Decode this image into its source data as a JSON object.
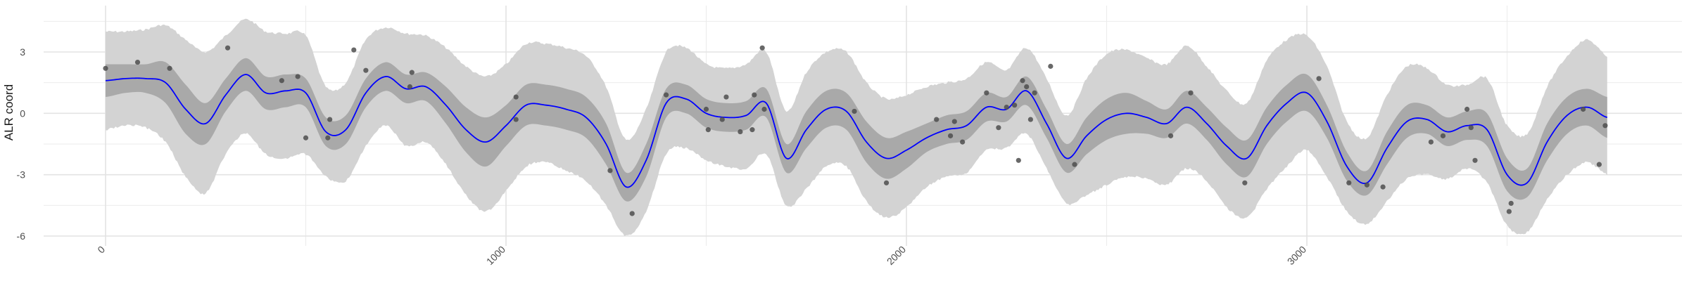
{
  "chart_data": {
    "type": "line",
    "title": "",
    "xlabel": "",
    "ylabel": "ALR coord",
    "xlim": [
      -100,
      3850
    ],
    "ylim": [
      -6.5,
      5.2
    ],
    "x_ticks": [
      0,
      1000,
      2000,
      3000
    ],
    "x_tick_labels": [
      "0",
      "1000",
      "2000",
      "3000"
    ],
    "y_ticks": [
      -6,
      -3,
      0,
      3
    ],
    "y_tick_labels": [
      "-6",
      "-3",
      "0",
      "3"
    ],
    "grid": true,
    "legend": "none",
    "colors": {
      "mean_line": "#0000ff",
      "inner_band": "#a9a9a9",
      "outer_band": "#d3d3d3",
      "points": "#4d4d4d",
      "grid": "#ebebeb"
    },
    "series": [
      {
        "kind": "mean",
        "x": [
          0,
          50,
          100,
          150,
          200,
          250,
          300,
          350,
          400,
          450,
          500,
          550,
          600,
          650,
          700,
          750,
          800,
          850,
          900,
          950,
          1000,
          1050,
          1100,
          1150,
          1200,
          1250,
          1300,
          1350,
          1400,
          1450,
          1500,
          1550,
          1600,
          1650,
          1700,
          1750,
          1800,
          1850,
          1900,
          1950,
          2000,
          2050,
          2100,
          2150,
          2200,
          2250,
          2300,
          2350,
          2400,
          2450,
          2500,
          2550,
          2600,
          2650,
          2700,
          2750,
          2800,
          2850,
          2900,
          2950,
          3000,
          3050,
          3100,
          3150,
          3200,
          3250,
          3300,
          3350,
          3400,
          3450,
          3500,
          3550,
          3600,
          3650,
          3700,
          3750
        ],
        "y": [
          1.6,
          1.7,
          1.7,
          1.5,
          0.2,
          -0.5,
          0.9,
          1.9,
          1.0,
          1.1,
          1.0,
          -0.9,
          -0.8,
          1.0,
          1.8,
          1.2,
          1.3,
          0.4,
          -0.8,
          -1.4,
          -0.6,
          0.4,
          0.4,
          0.2,
          -0.2,
          -1.5,
          -3.6,
          -2.3,
          0.5,
          0.7,
          0.0,
          -0.2,
          -0.1,
          0.5,
          -2.2,
          -0.8,
          0.2,
          0.1,
          -1.4,
          -2.2,
          -1.8,
          -1.2,
          -0.8,
          -0.6,
          0.3,
          0.2,
          1.1,
          -0.5,
          -2.2,
          -1.1,
          -0.3,
          0.0,
          -0.2,
          -0.5,
          0.3,
          -0.5,
          -1.6,
          -2.2,
          -0.6,
          0.5,
          1.0,
          -0.4,
          -2.6,
          -3.4,
          -1.7,
          -0.4,
          -0.3,
          -0.9,
          -0.6,
          -0.8,
          -3.0,
          -3.4,
          -1.4,
          -0.1,
          0.3,
          -0.2
        ]
      },
      {
        "kind": "inner_band",
        "x": [
          0,
          50,
          100,
          150,
          200,
          250,
          300,
          350,
          400,
          450,
          500,
          550,
          600,
          650,
          700,
          750,
          800,
          850,
          900,
          950,
          1000,
          1050,
          1100,
          1150,
          1200,
          1250,
          1300,
          1350,
          1400,
          1450,
          1500,
          1550,
          1600,
          1650,
          1700,
          1750,
          1800,
          1850,
          1900,
          1950,
          2000,
          2050,
          2100,
          2150,
          2200,
          2250,
          2300,
          2350,
          2400,
          2450,
          2500,
          2550,
          2600,
          2650,
          2700,
          2750,
          2800,
          2850,
          2900,
          2950,
          3000,
          3050,
          3100,
          3150,
          3200,
          3250,
          3300,
          3350,
          3400,
          3450,
          3500,
          3550,
          3600,
          3650,
          3700,
          3750
        ],
        "lower": [
          0.8,
          1.0,
          1.0,
          0.5,
          -1.0,
          -1.5,
          0.1,
          1.1,
          0.2,
          0.3,
          0.3,
          -1.6,
          -1.5,
          0.3,
          1.1,
          0.5,
          0.6,
          -0.5,
          -1.9,
          -2.6,
          -1.6,
          -0.6,
          -0.6,
          -0.8,
          -1.2,
          -2.5,
          -4.3,
          -3.1,
          -0.2,
          0.0,
          -0.7,
          -0.9,
          -0.8,
          -0.2,
          -2.9,
          -1.7,
          -0.7,
          -0.8,
          -2.4,
          -3.2,
          -2.7,
          -1.9,
          -1.5,
          -1.3,
          -0.4,
          -0.4,
          0.4,
          -1.2,
          -2.9,
          -2.0,
          -1.3,
          -1.0,
          -1.0,
          -1.2,
          -0.5,
          -1.3,
          -2.5,
          -3.1,
          -1.5,
          -0.4,
          0.1,
          -1.2,
          -3.3,
          -4.0,
          -2.5,
          -1.2,
          -1.0,
          -1.6,
          -1.3,
          -1.6,
          -3.8,
          -4.1,
          -2.3,
          -1.0,
          -0.6,
          -1.2
        ],
        "upper": [
          2.4,
          2.4,
          2.4,
          2.5,
          1.4,
          0.5,
          1.7,
          2.7,
          1.8,
          1.9,
          1.7,
          -0.2,
          -0.1,
          1.7,
          2.5,
          1.9,
          2.0,
          1.3,
          0.3,
          -0.2,
          0.4,
          1.4,
          1.4,
          1.2,
          0.8,
          -0.5,
          -2.9,
          -1.5,
          1.2,
          1.4,
          0.7,
          0.5,
          0.6,
          1.2,
          -1.5,
          0.1,
          1.1,
          1.0,
          -0.4,
          -1.2,
          -0.9,
          -0.5,
          -0.1,
          0.1,
          1.0,
          0.8,
          1.8,
          0.2,
          -1.5,
          -0.2,
          0.7,
          1.0,
          0.6,
          0.2,
          1.1,
          0.3,
          -0.7,
          -1.3,
          0.3,
          1.4,
          1.9,
          0.4,
          -1.9,
          -2.8,
          -0.9,
          0.4,
          0.4,
          -0.2,
          0.1,
          0.0,
          -2.2,
          -2.7,
          -0.5,
          0.8,
          1.2,
          0.8
        ]
      },
      {
        "kind": "outer_band",
        "x": [
          0,
          50,
          100,
          150,
          200,
          250,
          300,
          350,
          400,
          450,
          500,
          550,
          600,
          650,
          700,
          750,
          800,
          850,
          900,
          950,
          1000,
          1050,
          1100,
          1150,
          1200,
          1250,
          1300,
          1350,
          1400,
          1450,
          1500,
          1550,
          1600,
          1650,
          1700,
          1750,
          1800,
          1850,
          1900,
          1950,
          2000,
          2050,
          2100,
          2150,
          2200,
          2250,
          2300,
          2350,
          2400,
          2450,
          2500,
          2550,
          2600,
          2650,
          2700,
          2750,
          2800,
          2850,
          2900,
          2950,
          3000,
          3050,
          3100,
          3150,
          3200,
          3250,
          3300,
          3350,
          3400,
          3450,
          3500,
          3550,
          3600,
          3650,
          3700,
          3750
        ],
        "lower": [
          -0.8,
          -0.6,
          -0.7,
          -1.4,
          -3.1,
          -3.9,
          -2.0,
          -1.0,
          -2.0,
          -2.2,
          -2.0,
          -3.1,
          -3.3,
          -1.6,
          -0.6,
          -1.6,
          -1.4,
          -2.5,
          -4.0,
          -4.8,
          -3.8,
          -2.6,
          -2.4,
          -2.8,
          -3.3,
          -4.5,
          -6.0,
          -4.8,
          -2.0,
          -1.7,
          -2.3,
          -2.6,
          -2.7,
          -2.0,
          -4.5,
          -3.7,
          -2.6,
          -2.6,
          -4.3,
          -5.1,
          -4.6,
          -3.6,
          -3.1,
          -2.9,
          -1.8,
          -1.7,
          -1.0,
          -2.7,
          -4.4,
          -4.0,
          -3.5,
          -3.1,
          -3.2,
          -3.5,
          -2.7,
          -3.3,
          -4.6,
          -5.1,
          -3.7,
          -2.6,
          -1.8,
          -3.1,
          -4.8,
          -5.4,
          -4.3,
          -3.2,
          -3.0,
          -3.2,
          -2.7,
          -3.4,
          -5.5,
          -5.8,
          -4.2,
          -3.0,
          -2.4,
          -3.0
        ],
        "upper": [
          4.0,
          4.0,
          4.1,
          4.3,
          3.6,
          3.0,
          3.8,
          4.6,
          4.0,
          3.9,
          3.8,
          1.3,
          1.5,
          3.6,
          4.2,
          3.9,
          3.8,
          3.2,
          2.3,
          1.8,
          2.4,
          3.4,
          3.4,
          3.2,
          2.8,
          1.3,
          -1.3,
          0.2,
          3.0,
          3.2,
          2.4,
          2.2,
          2.4,
          3.0,
          0.1,
          2.0,
          3.0,
          3.0,
          1.5,
          0.7,
          0.9,
          1.3,
          1.5,
          1.7,
          2.5,
          2.1,
          3.2,
          1.7,
          -0.1,
          1.7,
          2.9,
          3.1,
          2.7,
          2.4,
          3.3,
          2.3,
          1.1,
          0.5,
          2.6,
          3.6,
          3.8,
          2.3,
          -0.4,
          -1.2,
          0.9,
          2.3,
          2.2,
          1.4,
          1.4,
          1.7,
          -0.6,
          -1.0,
          1.3,
          2.8,
          3.6,
          2.8
        ]
      },
      {
        "kind": "observations",
        "x": [
          0,
          80,
          160,
          305,
          440,
          480,
          500,
          555,
          560,
          620,
          650,
          760,
          765,
          1025,
          1025,
          1260,
          1315,
          1400,
          1500,
          1505,
          1540,
          1550,
          1585,
          1615,
          1620,
          1640,
          1645,
          1870,
          1950,
          2075,
          2110,
          2120,
          2140,
          2200,
          2230,
          2250,
          2270,
          2280,
          2290,
          2300,
          2310,
          2320,
          2360,
          2420,
          2660,
          2710,
          2845,
          3030,
          3105,
          3150,
          3190,
          3310,
          3340,
          3400,
          3410,
          3420,
          3505,
          3510,
          3690,
          3730,
          3745
        ],
        "y": [
          2.2,
          2.5,
          2.2,
          3.2,
          1.6,
          1.8,
          -1.2,
          -1.2,
          -0.3,
          3.1,
          2.1,
          1.3,
          2.0,
          -0.3,
          0.8,
          -2.8,
          -4.9,
          0.9,
          0.2,
          -0.8,
          -0.3,
          0.8,
          -0.9,
          -0.8,
          0.9,
          3.2,
          0.2,
          0.1,
          -3.4,
          -0.3,
          -1.1,
          -0.4,
          -1.4,
          1.0,
          -0.7,
          0.3,
          0.4,
          -2.3,
          1.6,
          1.3,
          -0.3,
          1.0,
          2.3,
          -2.5,
          -1.1,
          1.0,
          -3.4,
          1.7,
          -3.4,
          -3.5,
          -3.6,
          -1.4,
          -1.1,
          0.2,
          -0.7,
          -2.3,
          -4.8,
          -4.4,
          0.2,
          -2.5,
          -0.6
        ]
      }
    ]
  }
}
